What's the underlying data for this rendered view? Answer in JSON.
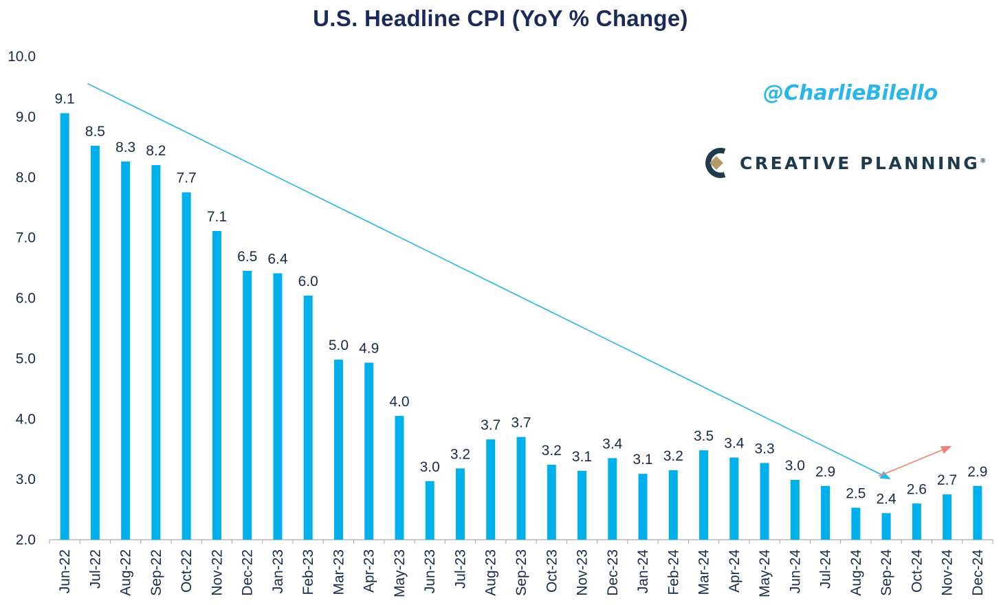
{
  "colors": {
    "bar": "#00b0eb",
    "title": "#1a2a5a",
    "trend_down": "#29b6e8",
    "trend_up": "#f28072",
    "handle": "#29b6e8",
    "brand_text": "#1f3a4d"
  },
  "watermark": {
    "handle": "@CharlieBilello",
    "brand": "CREATIVE PLANNING",
    "brand_mark": "®"
  },
  "chart_data": {
    "type": "bar",
    "title": "U.S. Headline CPI (YoY % Change)",
    "xlabel": "",
    "ylabel": "",
    "ylim": [
      2.0,
      10.0
    ],
    "yticks": [
      "2.0",
      "3.0",
      "4.0",
      "5.0",
      "6.0",
      "7.0",
      "8.0",
      "9.0",
      "10.0"
    ],
    "grid": false,
    "categories": [
      "Jun-22",
      "Jul-22",
      "Aug-22",
      "Sep-22",
      "Oct-22",
      "Nov-22",
      "Dec-22",
      "Jan-23",
      "Feb-23",
      "Mar-23",
      "Apr-23",
      "May-23",
      "Jun-23",
      "Jul-23",
      "Aug-23",
      "Sep-23",
      "Oct-23",
      "Nov-23",
      "Dec-23",
      "Jan-24",
      "Feb-24",
      "Mar-24",
      "Apr-24",
      "May-24",
      "Jun-24",
      "Jul-24",
      "Aug-24",
      "Sep-24",
      "Oct-24",
      "Nov-24",
      "Dec-24"
    ],
    "values": [
      9.06,
      8.52,
      8.26,
      8.2,
      7.75,
      7.11,
      6.45,
      6.41,
      6.04,
      4.98,
      4.93,
      4.05,
      2.97,
      3.18,
      3.66,
      3.7,
      3.24,
      3.14,
      3.35,
      3.09,
      3.15,
      3.48,
      3.36,
      3.27,
      2.99,
      2.89,
      2.53,
      2.44,
      2.6,
      2.75,
      2.89
    ],
    "labels": [
      "9.1",
      "8.5",
      "8.3",
      "8.2",
      "7.7",
      "7.1",
      "6.5",
      "6.4",
      "6.0",
      "5.0",
      "4.9",
      "4.0",
      "3.0",
      "3.2",
      "3.7",
      "3.7",
      "3.2",
      "3.1",
      "3.4",
      "3.1",
      "3.2",
      "3.5",
      "3.4",
      "3.3",
      "3.0",
      "2.9",
      "2.5",
      "2.4",
      "2.6",
      "2.7",
      "2.9"
    ],
    "annotations": [
      {
        "type": "trend-arrow",
        "direction": "down",
        "from": {
          "x": "Jul-22",
          "y": 9.55
        },
        "to": {
          "x": "Sep-24",
          "y": 3.0
        }
      },
      {
        "type": "trend-arrow",
        "direction": "up",
        "from": {
          "x": "Sep-24",
          "y": 3.05
        },
        "to": {
          "x": "Nov-24",
          "y": 3.55
        }
      }
    ]
  }
}
